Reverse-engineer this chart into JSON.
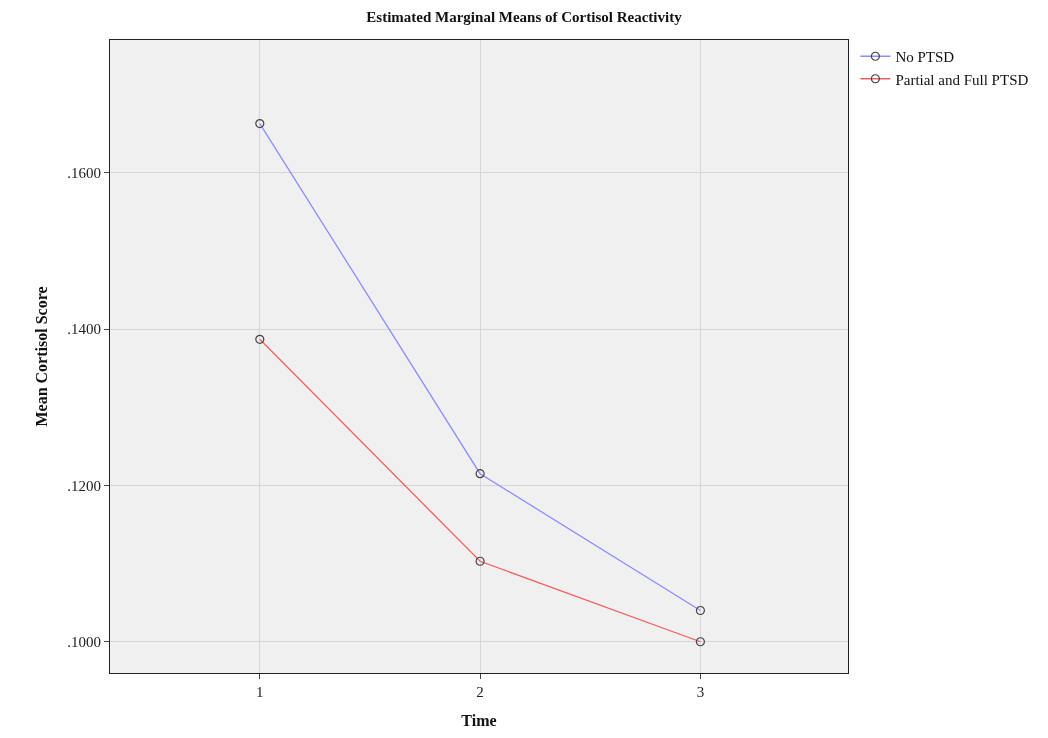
{
  "chart_data": {
    "type": "line",
    "title": "Estimated Marginal Means of Cortisol Reactivity",
    "xlabel": "Time",
    "ylabel": "Mean Cortisol Score",
    "x": [
      1,
      2,
      3
    ],
    "series": [
      {
        "name": "No PTSD",
        "color": "#8c8cff",
        "values": [
          0.1663,
          0.1215,
          0.104
        ]
      },
      {
        "name": "Partial and Full PTSD",
        "color": "#f06060",
        "values": [
          0.1387,
          0.1103,
          0.1
        ]
      }
    ],
    "xlim": [
      0.32,
      3.67
    ],
    "xticks": [
      1,
      2,
      3
    ],
    "ylim": [
      0.096,
      0.177
    ],
    "yticks": [
      {
        "value": 0.1,
        "label": ".1000"
      },
      {
        "value": 0.12,
        "label": ".1200"
      },
      {
        "value": 0.14,
        "label": ".1400"
      },
      {
        "value": 0.16,
        "label": ".1600"
      }
    ],
    "grid": true,
    "legend": "right",
    "marker": "circle",
    "line_style": "solid"
  }
}
